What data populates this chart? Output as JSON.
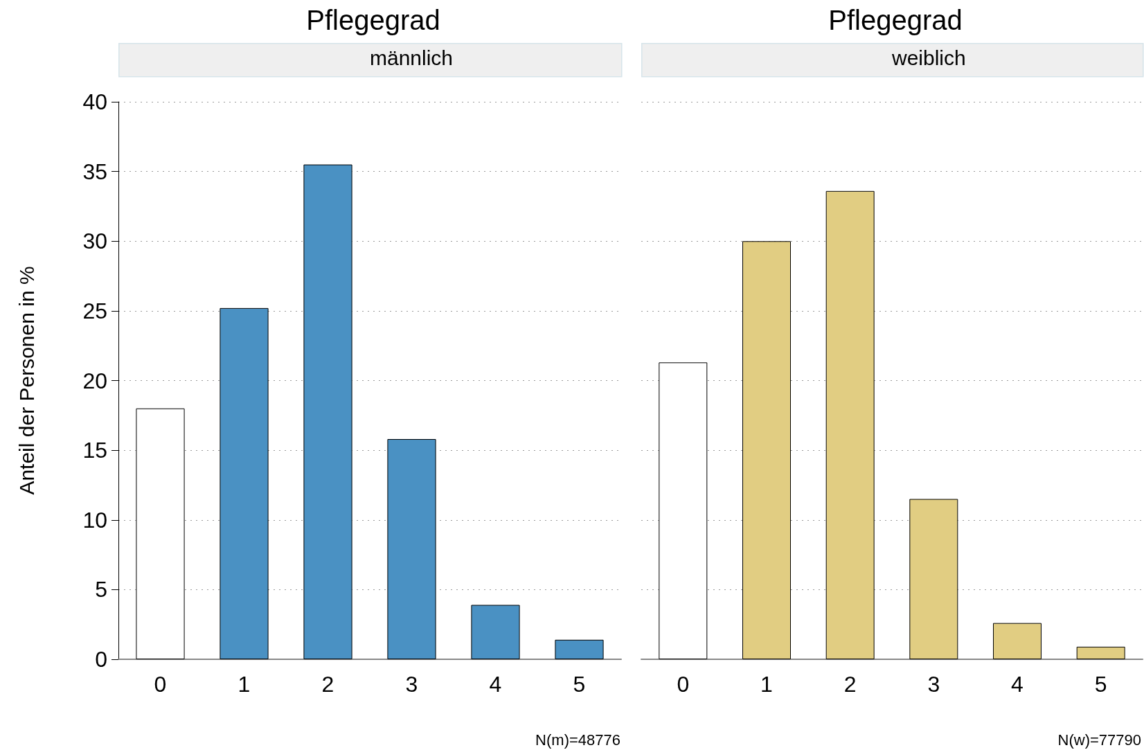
{
  "chart_data": [
    {
      "type": "bar",
      "title": "Pflegegrad",
      "subtitle": "männlich",
      "ylabel": "Anteil der Personen in %",
      "categories": [
        "0",
        "1",
        "2",
        "3",
        "4",
        "5"
      ],
      "values": [
        18.0,
        25.2,
        35.5,
        15.8,
        3.9,
        1.4
      ],
      "colors": [
        "#ffffff",
        "#4a91c3",
        "#4a91c3",
        "#4a91c3",
        "#4a91c3",
        "#4a91c3"
      ],
      "ylim": [
        0,
        40
      ],
      "yticks": [
        0,
        5,
        10,
        15,
        20,
        25,
        30,
        35,
        40
      ],
      "grid": "y",
      "annotations": [
        "N(m)=48776"
      ]
    },
    {
      "type": "bar",
      "title": "Pflegegrad",
      "subtitle": "weiblich",
      "categories": [
        "0",
        "1",
        "2",
        "3",
        "4",
        "5"
      ],
      "values": [
        21.3,
        30.0,
        33.6,
        11.5,
        2.6,
        0.9
      ],
      "colors": [
        "#ffffff",
        "#e1cd82",
        "#e1cd82",
        "#e1cd82",
        "#e1cd82",
        "#e1cd82"
      ],
      "ylim": [
        0,
        40
      ],
      "yticks": [
        0,
        5,
        10,
        15,
        20,
        25,
        30,
        35,
        40
      ],
      "grid": "y",
      "tick_labels": "x",
      "annotations": [
        "N(w)=77790"
      ]
    }
  ]
}
